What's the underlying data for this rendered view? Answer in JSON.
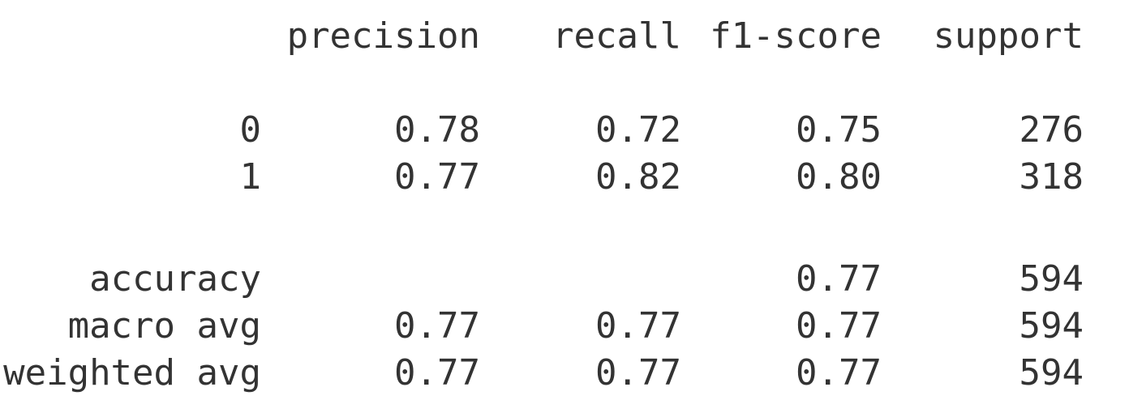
{
  "page": {
    "background": "#ffffff",
    "text_color": "#333333"
  },
  "chart_data": {
    "type": "table",
    "columns": [
      "",
      "precision",
      "recall",
      "f1-score",
      "support"
    ],
    "rows": [
      [
        "0",
        "0.78",
        "0.72",
        "0.75",
        "276"
      ],
      [
        "1",
        "0.77",
        "0.82",
        "0.80",
        "318"
      ],
      [
        "accuracy",
        "",
        "",
        "0.77",
        "594"
      ],
      [
        "macro avg",
        "0.77",
        "0.77",
        "0.77",
        "594"
      ],
      [
        "weighted avg",
        "0.77",
        "0.77",
        "0.77",
        "594"
      ]
    ]
  }
}
